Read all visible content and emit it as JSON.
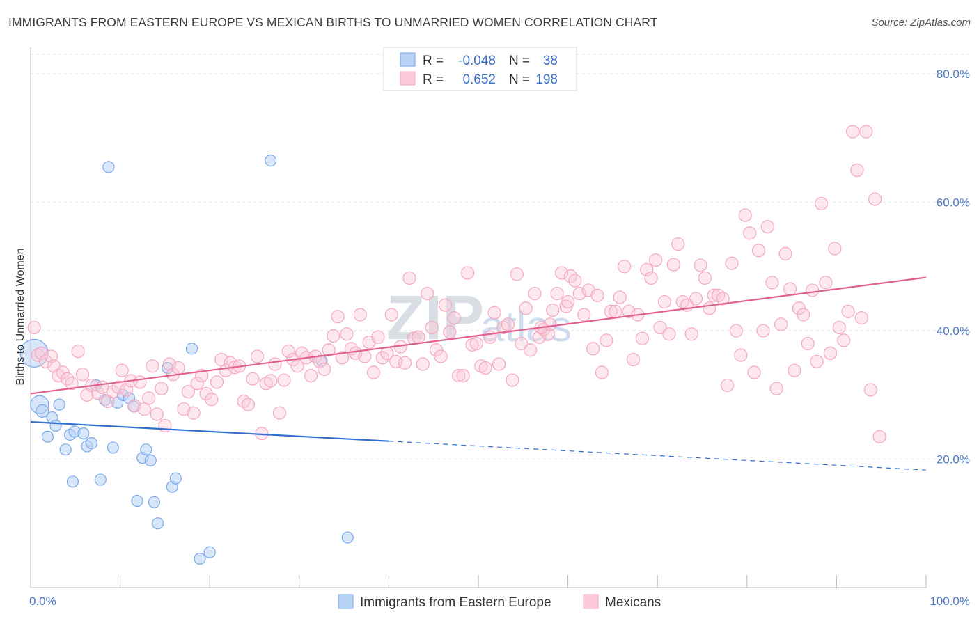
{
  "title": "IMMIGRANTS FROM EASTERN EUROPE VS MEXICAN BIRTHS TO UNMARRIED WOMEN CORRELATION CHART",
  "source": "Source: ZipAtlas.com",
  "watermark": {
    "main": "ZIP",
    "sub": "atlas"
  },
  "legend": {
    "r_label": "R =",
    "n_label": "N =",
    "rows": [
      {
        "r": "-0.048",
        "n": "38"
      },
      {
        "r": "0.652",
        "n": "198"
      }
    ]
  },
  "chart_data": {
    "type": "scatter",
    "title": "IMMIGRANTS FROM EASTERN EUROPE VS MEXICAN BIRTHS TO UNMARRIED WOMEN CORRELATION CHART",
    "xlabel": "",
    "ylabel": "Births to Unmarried Women",
    "xlim": [
      0,
      100
    ],
    "ylim": [
      0,
      85
    ],
    "x_tick_labels": [
      "0.0%",
      "100.0%"
    ],
    "y_ticks": [
      20,
      40,
      60,
      80
    ],
    "y_tick_labels": [
      "20.0%",
      "40.0%",
      "60.0%",
      "80.0%"
    ],
    "grid": true,
    "series": [
      {
        "name": "Immigrants from Eastern Europe",
        "color": "#7aa8e8",
        "line_color": "#2e6fd0",
        "trend": {
          "x0": 0,
          "y0": 25.8,
          "x1": 40,
          "y1": 22.8,
          "dash_to_x": 100,
          "dash_to_y": 18.3
        },
        "points": [
          [
            0.4,
            36.5,
            20
          ],
          [
            1.0,
            28.5,
            13
          ],
          [
            1.3,
            27.5,
            9
          ],
          [
            1.9,
            23.5,
            8
          ],
          [
            2.4,
            26.5,
            8
          ],
          [
            2.8,
            25.2,
            8
          ],
          [
            3.2,
            28.5,
            8
          ],
          [
            3.9,
            21.5,
            8
          ],
          [
            4.4,
            23.8,
            8
          ],
          [
            4.7,
            16.5,
            8
          ],
          [
            4.9,
            24.3,
            8
          ],
          [
            5.9,
            24.0,
            8
          ],
          [
            6.3,
            22.0,
            8
          ],
          [
            6.8,
            22.5,
            8
          ],
          [
            7.3,
            31.5,
            8
          ],
          [
            7.8,
            16.8,
            8
          ],
          [
            8.3,
            29.2,
            8
          ],
          [
            8.7,
            65.5,
            8
          ],
          [
            9.2,
            21.8,
            8
          ],
          [
            9.7,
            28.8,
            8
          ],
          [
            10.3,
            30.0,
            8
          ],
          [
            11.0,
            29.5,
            8
          ],
          [
            11.5,
            28.2,
            8
          ],
          [
            11.9,
            13.5,
            8
          ],
          [
            12.5,
            20.2,
            8
          ],
          [
            12.9,
            21.5,
            8
          ],
          [
            13.4,
            19.8,
            8
          ],
          [
            13.8,
            13.3,
            8
          ],
          [
            14.2,
            10.0,
            8
          ],
          [
            15.3,
            34.2,
            8
          ],
          [
            15.8,
            15.7,
            8
          ],
          [
            16.2,
            17.0,
            8
          ],
          [
            18.0,
            37.2,
            8
          ],
          [
            18.9,
            4.5,
            8
          ],
          [
            20.0,
            5.5,
            8
          ],
          [
            26.8,
            66.5,
            8
          ],
          [
            32.5,
            35.3,
            8
          ],
          [
            35.4,
            7.8,
            8
          ]
        ]
      },
      {
        "name": "Mexicans",
        "color": "#f4a6c0",
        "line_color": "#e06090",
        "trend": {
          "x0": 0,
          "y0": 30.2,
          "x1": 100,
          "y1": 48.3
        },
        "points": [
          [
            0.4,
            40.5,
            9
          ],
          [
            0.8,
            36.2,
            9
          ],
          [
            1.2,
            36.5,
            9
          ],
          [
            1.7,
            35.2,
            9
          ],
          [
            2.3,
            36.0,
            9
          ],
          [
            2.6,
            34.5,
            9
          ],
          [
            3.1,
            33.0,
            9
          ],
          [
            3.6,
            33.5,
            9
          ],
          [
            4.1,
            32.5,
            9
          ],
          [
            4.6,
            31.8,
            9
          ],
          [
            5.3,
            36.8,
            9
          ],
          [
            5.8,
            33.2,
            9
          ],
          [
            6.3,
            30.0,
            9
          ],
          [
            6.8,
            31.5,
            9
          ],
          [
            7.5,
            30.3,
            9
          ],
          [
            8.0,
            31.2,
            9
          ],
          [
            8.6,
            29.0,
            9
          ],
          [
            9.2,
            30.5,
            9
          ],
          [
            9.8,
            31.2,
            9
          ],
          [
            10.2,
            33.8,
            9
          ],
          [
            10.7,
            30.8,
            9
          ],
          [
            11.2,
            32.2,
            9
          ],
          [
            11.6,
            28.3,
            9
          ],
          [
            12.2,
            32.0,
            9
          ],
          [
            12.7,
            27.8,
            9
          ],
          [
            13.2,
            29.5,
            9
          ],
          [
            13.6,
            34.5,
            9
          ],
          [
            14.1,
            27.0,
            9
          ],
          [
            14.6,
            31.0,
            9
          ],
          [
            15.0,
            25.2,
            9
          ],
          [
            15.5,
            34.8,
            9
          ],
          [
            15.9,
            33.2,
            9
          ],
          [
            16.5,
            34.2,
            9
          ],
          [
            17.1,
            27.8,
            9
          ],
          [
            17.6,
            30.5,
            9
          ],
          [
            18.2,
            27.2,
            9
          ],
          [
            18.6,
            31.8,
            9
          ],
          [
            19.1,
            33.0,
            9
          ],
          [
            19.6,
            30.2,
            9
          ],
          [
            20.2,
            29.3,
            9
          ],
          [
            20.8,
            32.0,
            9
          ],
          [
            21.3,
            35.5,
            9
          ],
          [
            21.8,
            33.8,
            9
          ],
          [
            22.3,
            35.0,
            9
          ],
          [
            22.8,
            34.3,
            9
          ],
          [
            23.3,
            34.5,
            9
          ],
          [
            23.8,
            29.0,
            9
          ],
          [
            24.3,
            28.5,
            9
          ],
          [
            24.8,
            32.5,
            9
          ],
          [
            25.3,
            36.0,
            9
          ],
          [
            25.8,
            24.0,
            9
          ],
          [
            26.3,
            31.8,
            9
          ],
          [
            26.8,
            32.2,
            9
          ],
          [
            27.3,
            34.8,
            9
          ],
          [
            27.8,
            27.2,
            9
          ],
          [
            28.3,
            32.3,
            9
          ],
          [
            28.8,
            36.8,
            9
          ],
          [
            29.3,
            35.5,
            9
          ],
          [
            29.8,
            34.5,
            9
          ],
          [
            30.3,
            36.5,
            9
          ],
          [
            30.8,
            35.8,
            9
          ],
          [
            31.3,
            33.0,
            9
          ],
          [
            31.8,
            36.0,
            9
          ],
          [
            32.3,
            35.2,
            9
          ],
          [
            32.8,
            34.0,
            9
          ],
          [
            33.3,
            37.0,
            9
          ],
          [
            33.8,
            39.2,
            9
          ],
          [
            34.3,
            42.2,
            9
          ],
          [
            34.8,
            35.8,
            9
          ],
          [
            35.3,
            39.5,
            9
          ],
          [
            35.8,
            37.2,
            9
          ],
          [
            36.3,
            36.5,
            9
          ],
          [
            36.8,
            42.5,
            9
          ],
          [
            37.3,
            36.0,
            9
          ],
          [
            37.8,
            38.2,
            9
          ],
          [
            38.3,
            33.5,
            9
          ],
          [
            38.8,
            39.0,
            9
          ],
          [
            39.3,
            35.8,
            9
          ],
          [
            39.8,
            36.5,
            9
          ],
          [
            40.3,
            42.5,
            9
          ],
          [
            40.8,
            35.2,
            9
          ],
          [
            41.3,
            37.5,
            9
          ],
          [
            41.8,
            35.0,
            9
          ],
          [
            42.3,
            48.2,
            9
          ],
          [
            42.8,
            38.8,
            9
          ],
          [
            43.3,
            39.0,
            9
          ],
          [
            43.8,
            34.8,
            9
          ],
          [
            44.3,
            45.8,
            9
          ],
          [
            44.8,
            40.5,
            9
          ],
          [
            45.3,
            37.0,
            9
          ],
          [
            45.8,
            36.0,
            9
          ],
          [
            46.3,
            44.0,
            9
          ],
          [
            46.8,
            39.8,
            9
          ],
          [
            47.3,
            42.0,
            9
          ],
          [
            47.8,
            33.0,
            9
          ],
          [
            48.3,
            33.0,
            9
          ],
          [
            48.8,
            49.0,
            9
          ],
          [
            49.3,
            37.8,
            9
          ],
          [
            49.8,
            38.0,
            9
          ],
          [
            50.3,
            34.5,
            9
          ],
          [
            50.8,
            34.2,
            9
          ],
          [
            51.3,
            39.0,
            9
          ],
          [
            51.8,
            42.8,
            9
          ],
          [
            52.3,
            34.8,
            9
          ],
          [
            52.8,
            40.5,
            9
          ],
          [
            53.3,
            41.0,
            9
          ],
          [
            53.8,
            32.3,
            9
          ],
          [
            54.3,
            48.8,
            9
          ],
          [
            54.8,
            38.0,
            9
          ],
          [
            55.3,
            43.5,
            9
          ],
          [
            55.8,
            37.0,
            9
          ],
          [
            56.3,
            45.8,
            9
          ],
          [
            56.8,
            39.0,
            9
          ],
          [
            57.3,
            40.2,
            9
          ],
          [
            57.8,
            39.5,
            9
          ],
          [
            58.3,
            43.2,
            9
          ],
          [
            58.8,
            45.8,
            9
          ],
          [
            59.3,
            49.0,
            9
          ],
          [
            59.8,
            43.8,
            9
          ],
          [
            60.3,
            48.5,
            9
          ],
          [
            60.8,
            47.8,
            9
          ],
          [
            61.3,
            45.8,
            9
          ],
          [
            61.8,
            42.5,
            9
          ],
          [
            62.3,
            46.3,
            9
          ],
          [
            62.8,
            37.2,
            9
          ],
          [
            63.3,
            45.5,
            9
          ],
          [
            63.8,
            33.5,
            9
          ],
          [
            64.3,
            38.5,
            9
          ],
          [
            64.8,
            43.0,
            9
          ],
          [
            65.3,
            43.0,
            9
          ],
          [
            65.8,
            45.2,
            9
          ],
          [
            66.3,
            50.0,
            9
          ],
          [
            66.8,
            43.0,
            9
          ],
          [
            67.3,
            35.5,
            9
          ],
          [
            67.8,
            42.5,
            9
          ],
          [
            68.3,
            38.8,
            9
          ],
          [
            68.8,
            49.5,
            9
          ],
          [
            69.3,
            48.2,
            9
          ],
          [
            69.8,
            51.0,
            9
          ],
          [
            70.3,
            40.5,
            9
          ],
          [
            70.8,
            44.5,
            9
          ],
          [
            71.3,
            39.5,
            9
          ],
          [
            71.8,
            50.3,
            9
          ],
          [
            72.3,
            53.5,
            9
          ],
          [
            72.8,
            44.5,
            9
          ],
          [
            73.3,
            44.0,
            9
          ],
          [
            73.8,
            39.5,
            9
          ],
          [
            74.3,
            45.0,
            9
          ],
          [
            74.8,
            50.2,
            9
          ],
          [
            75.3,
            48.2,
            9
          ],
          [
            75.8,
            43.5,
            9
          ],
          [
            76.3,
            45.5,
            9
          ],
          [
            76.8,
            45.5,
            9
          ],
          [
            77.3,
            45.0,
            9
          ],
          [
            77.8,
            31.5,
            9
          ],
          [
            78.3,
            50.5,
            9
          ],
          [
            78.8,
            40.0,
            9
          ],
          [
            79.3,
            36.2,
            9
          ],
          [
            79.8,
            58.0,
            9
          ],
          [
            80.3,
            55.2,
            9
          ],
          [
            80.8,
            33.5,
            9
          ],
          [
            81.3,
            52.5,
            9
          ],
          [
            81.8,
            40.0,
            9
          ],
          [
            82.3,
            56.2,
            9
          ],
          [
            82.8,
            47.5,
            9
          ],
          [
            83.3,
            31.0,
            9
          ],
          [
            83.8,
            41.0,
            9
          ],
          [
            84.3,
            52.0,
            9
          ],
          [
            84.8,
            46.5,
            9
          ],
          [
            85.3,
            33.8,
            9
          ],
          [
            85.8,
            43.5,
            9
          ],
          [
            86.3,
            42.5,
            9
          ],
          [
            86.8,
            38.0,
            9
          ],
          [
            87.3,
            46.3,
            9
          ],
          [
            87.8,
            35.2,
            9
          ],
          [
            88.3,
            59.8,
            9
          ],
          [
            88.8,
            47.5,
            9
          ],
          [
            89.3,
            36.5,
            9
          ],
          [
            89.8,
            52.8,
            9
          ],
          [
            90.3,
            40.5,
            9
          ],
          [
            90.8,
            38.5,
            9
          ],
          [
            91.3,
            43.0,
            9
          ],
          [
            91.8,
            71.0,
            9
          ],
          [
            92.3,
            65.0,
            9
          ],
          [
            92.8,
            42.0,
            9
          ],
          [
            93.3,
            71.0,
            9
          ],
          [
            93.8,
            30.8,
            9
          ],
          [
            94.3,
            60.5,
            9
          ],
          [
            94.8,
            23.5,
            9
          ],
          [
            58.0,
            41.0,
            9
          ],
          [
            57.0,
            40.5,
            9
          ],
          [
            60.0,
            44.5,
            9
          ]
        ]
      }
    ]
  },
  "bottom_legend": [
    {
      "label": "Immigrants from Eastern Europe",
      "color": "#b8d2f5",
      "border": "#7aa8e8"
    },
    {
      "label": "Mexicans",
      "color": "#fbcbda",
      "border": "#f4a6c0"
    }
  ]
}
